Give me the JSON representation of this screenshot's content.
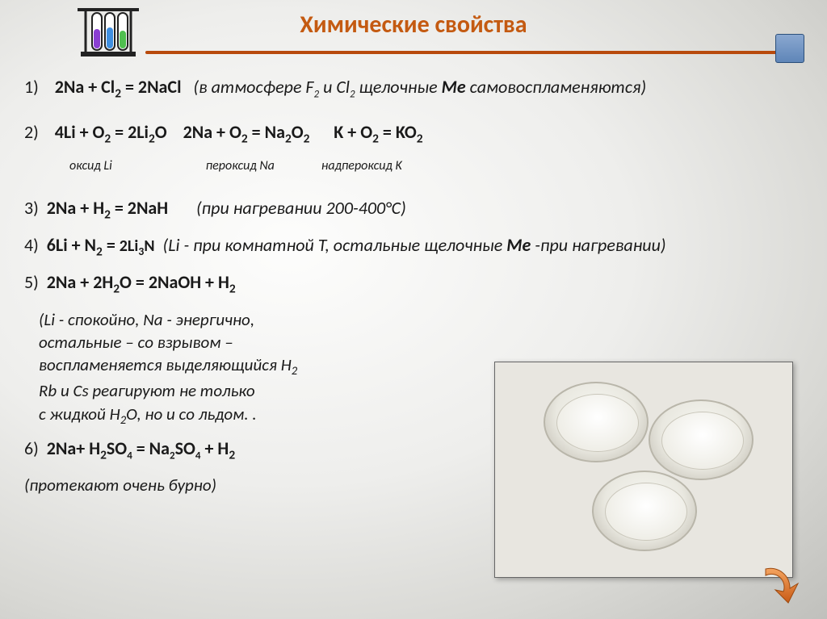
{
  "title": "Химические свойства",
  "eq1": {
    "num": "1)",
    "formula_html": "2Na + Cl<sub>2</sub> = 2NaCl",
    "note_html": "(в атмосфере  F<sub class='small-sub'>2</sub> и Cl<sub class='small-sub'>2</sub>  щелочные  <b>Ме</b>  самовоспламеняются)"
  },
  "eq2": {
    "num": "2)",
    "part1": "4Li + O<sub>2</sub> = 2Li<sub>2</sub>O",
    "part2": "2Na + O<sub>2</sub> = Na<sub>2</sub>O<sub>2</sub>",
    "part3": "K + O<sub>2</sub> = KO<sub>2</sub>",
    "label1": "оксид Li",
    "label2": "пероксид Na",
    "label3": "надпероксид K"
  },
  "eq3": {
    "num": "3)",
    "formula_html": "2Na + H<sub>2</sub> = 2NaH",
    "note": "(при нагревании 200-400°С)"
  },
  "eq4": {
    "num": "4)",
    "formula_html": "6Li + N<sub>2</sub> = <span class='small-text'>2Li<sub>3</sub>N</span>",
    "note_html": "(Li - при комнатной  T, остальные щелочные <b>Ме</b> -при нагревании)"
  },
  "eq5": {
    "num": "5)",
    "formula_html": "2Na + 2H<sub>2</sub>O = 2NaOH + H<sub>2</sub>",
    "lines": [
      "(Li - спокойно, Na - энергично,",
      "остальные – со взрывом –",
      "воспламеняется выделяющийся H<sub>2</sub>",
      "Rb  и  Cs реагируют не только",
      "с жидкой H<sub>2</sub>O, но и со льдом. ."
    ]
  },
  "eq6": {
    "num": "6)",
    "formula_html": "2Na+ H<sub>2</sub>SO<sub class='small-sub'>4</sub> = Na<sub class='small-sub'>2</sub>SO<sub class='small-sub'>4</sub> + H<sub>2</sub>",
    "note": "(протекают очень бурно)"
  },
  "colors": {
    "title": "#c45a11",
    "rule": "#b84a0c",
    "nav_box_top": "#8aa8d0",
    "nav_box_bottom": "#5f86b8",
    "arrow": "#d2691e",
    "tube_purple": "#8a3fd1",
    "tube_blue": "#3f8fe0",
    "tube_green": "#4fbf4f"
  }
}
